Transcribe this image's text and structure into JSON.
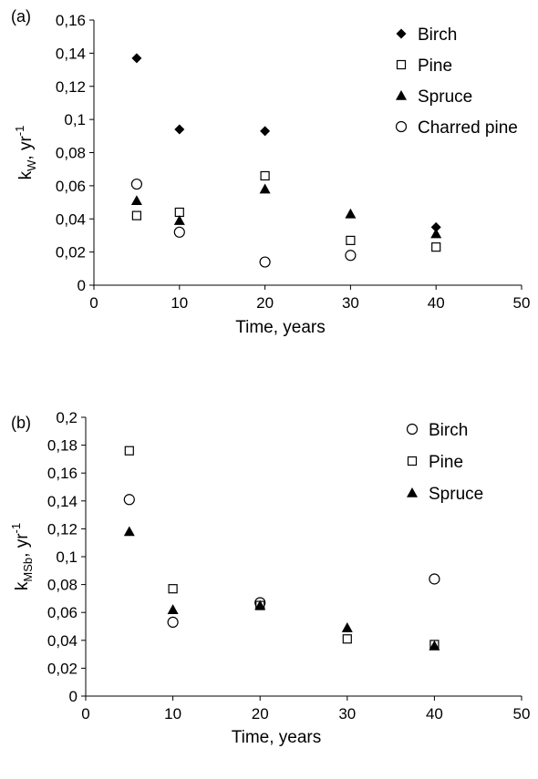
{
  "chart_data": [
    {
      "type": "scatter",
      "panel_label": "(a)",
      "xlabel": "Time, years",
      "ylabel": {
        "main": "k",
        "sub": "W",
        "unit": ", yr",
        "sup": "-1"
      },
      "xlim": [
        0,
        50
      ],
      "ylim": [
        0,
        0.16
      ],
      "x_ticks": [
        0,
        10,
        20,
        30,
        40,
        50
      ],
      "y_ticks": [
        0,
        0.02,
        0.04,
        0.06,
        0.08,
        0.1,
        0.12,
        0.14,
        0.16
      ],
      "x_tick_labels": [
        "0",
        "10",
        "20",
        "30",
        "40",
        "50"
      ],
      "y_tick_labels": [
        "0",
        "0,02",
        "0,04",
        "0,06",
        "0,08",
        "0,1",
        "0,12",
        "0,14",
        "0,16"
      ],
      "grid": false,
      "legend_position": "top-right",
      "series": [
        {
          "name": "Birch",
          "marker": "diamond-filled",
          "points": [
            [
              5,
              0.137
            ],
            [
              10,
              0.094
            ],
            [
              20,
              0.093
            ],
            [
              40,
              0.035
            ]
          ]
        },
        {
          "name": "Pine",
          "marker": "square-open",
          "points": [
            [
              5,
              0.042
            ],
            [
              10,
              0.044
            ],
            [
              20,
              0.066
            ],
            [
              30,
              0.027
            ],
            [
              40,
              0.023
            ]
          ]
        },
        {
          "name": "Spruce",
          "marker": "triangle-filled",
          "points": [
            [
              5,
              0.051
            ],
            [
              10,
              0.039
            ],
            [
              20,
              0.058
            ],
            [
              30,
              0.043
            ],
            [
              40,
              0.031
            ]
          ]
        },
        {
          "name": "Charred pine",
          "marker": "circle-open",
          "points": [
            [
              5,
              0.061
            ],
            [
              10,
              0.032
            ],
            [
              20,
              0.014
            ],
            [
              30,
              0.018
            ]
          ]
        }
      ]
    },
    {
      "type": "scatter",
      "panel_label": "(b)",
      "xlabel": "Time, years",
      "ylabel": {
        "main": "k",
        "sub": "MSb",
        "unit": ", yr",
        "sup": "-1"
      },
      "xlim": [
        0,
        50
      ],
      "ylim": [
        0,
        0.2
      ],
      "x_ticks": [
        0,
        10,
        20,
        30,
        40,
        50
      ],
      "y_ticks": [
        0,
        0.02,
        0.04,
        0.06,
        0.08,
        0.1,
        0.12,
        0.14,
        0.16,
        0.18,
        0.2
      ],
      "x_tick_labels": [
        "0",
        "10",
        "20",
        "30",
        "40",
        "50"
      ],
      "y_tick_labels": [
        "0",
        "0,02",
        "0,04",
        "0,06",
        "0,08",
        "0,1",
        "0,12",
        "0,14",
        "0,16",
        "0,18",
        "0,2"
      ],
      "grid": false,
      "legend_position": "top-right",
      "series": [
        {
          "name": "Birch",
          "marker": "circle-open",
          "points": [
            [
              5,
              0.141
            ],
            [
              10,
              0.053
            ],
            [
              20,
              0.067
            ],
            [
              40,
              0.084
            ]
          ]
        },
        {
          "name": "Pine",
          "marker": "square-open",
          "points": [
            [
              5,
              0.176
            ],
            [
              10,
              0.077
            ],
            [
              20,
              0.065
            ],
            [
              30,
              0.041
            ],
            [
              40,
              0.037
            ]
          ]
        },
        {
          "name": "Spruce",
          "marker": "triangle-filled",
          "points": [
            [
              5,
              0.118
            ],
            [
              10,
              0.062
            ],
            [
              20,
              0.065
            ],
            [
              30,
              0.049
            ],
            [
              40,
              0.036
            ]
          ]
        }
      ]
    }
  ]
}
